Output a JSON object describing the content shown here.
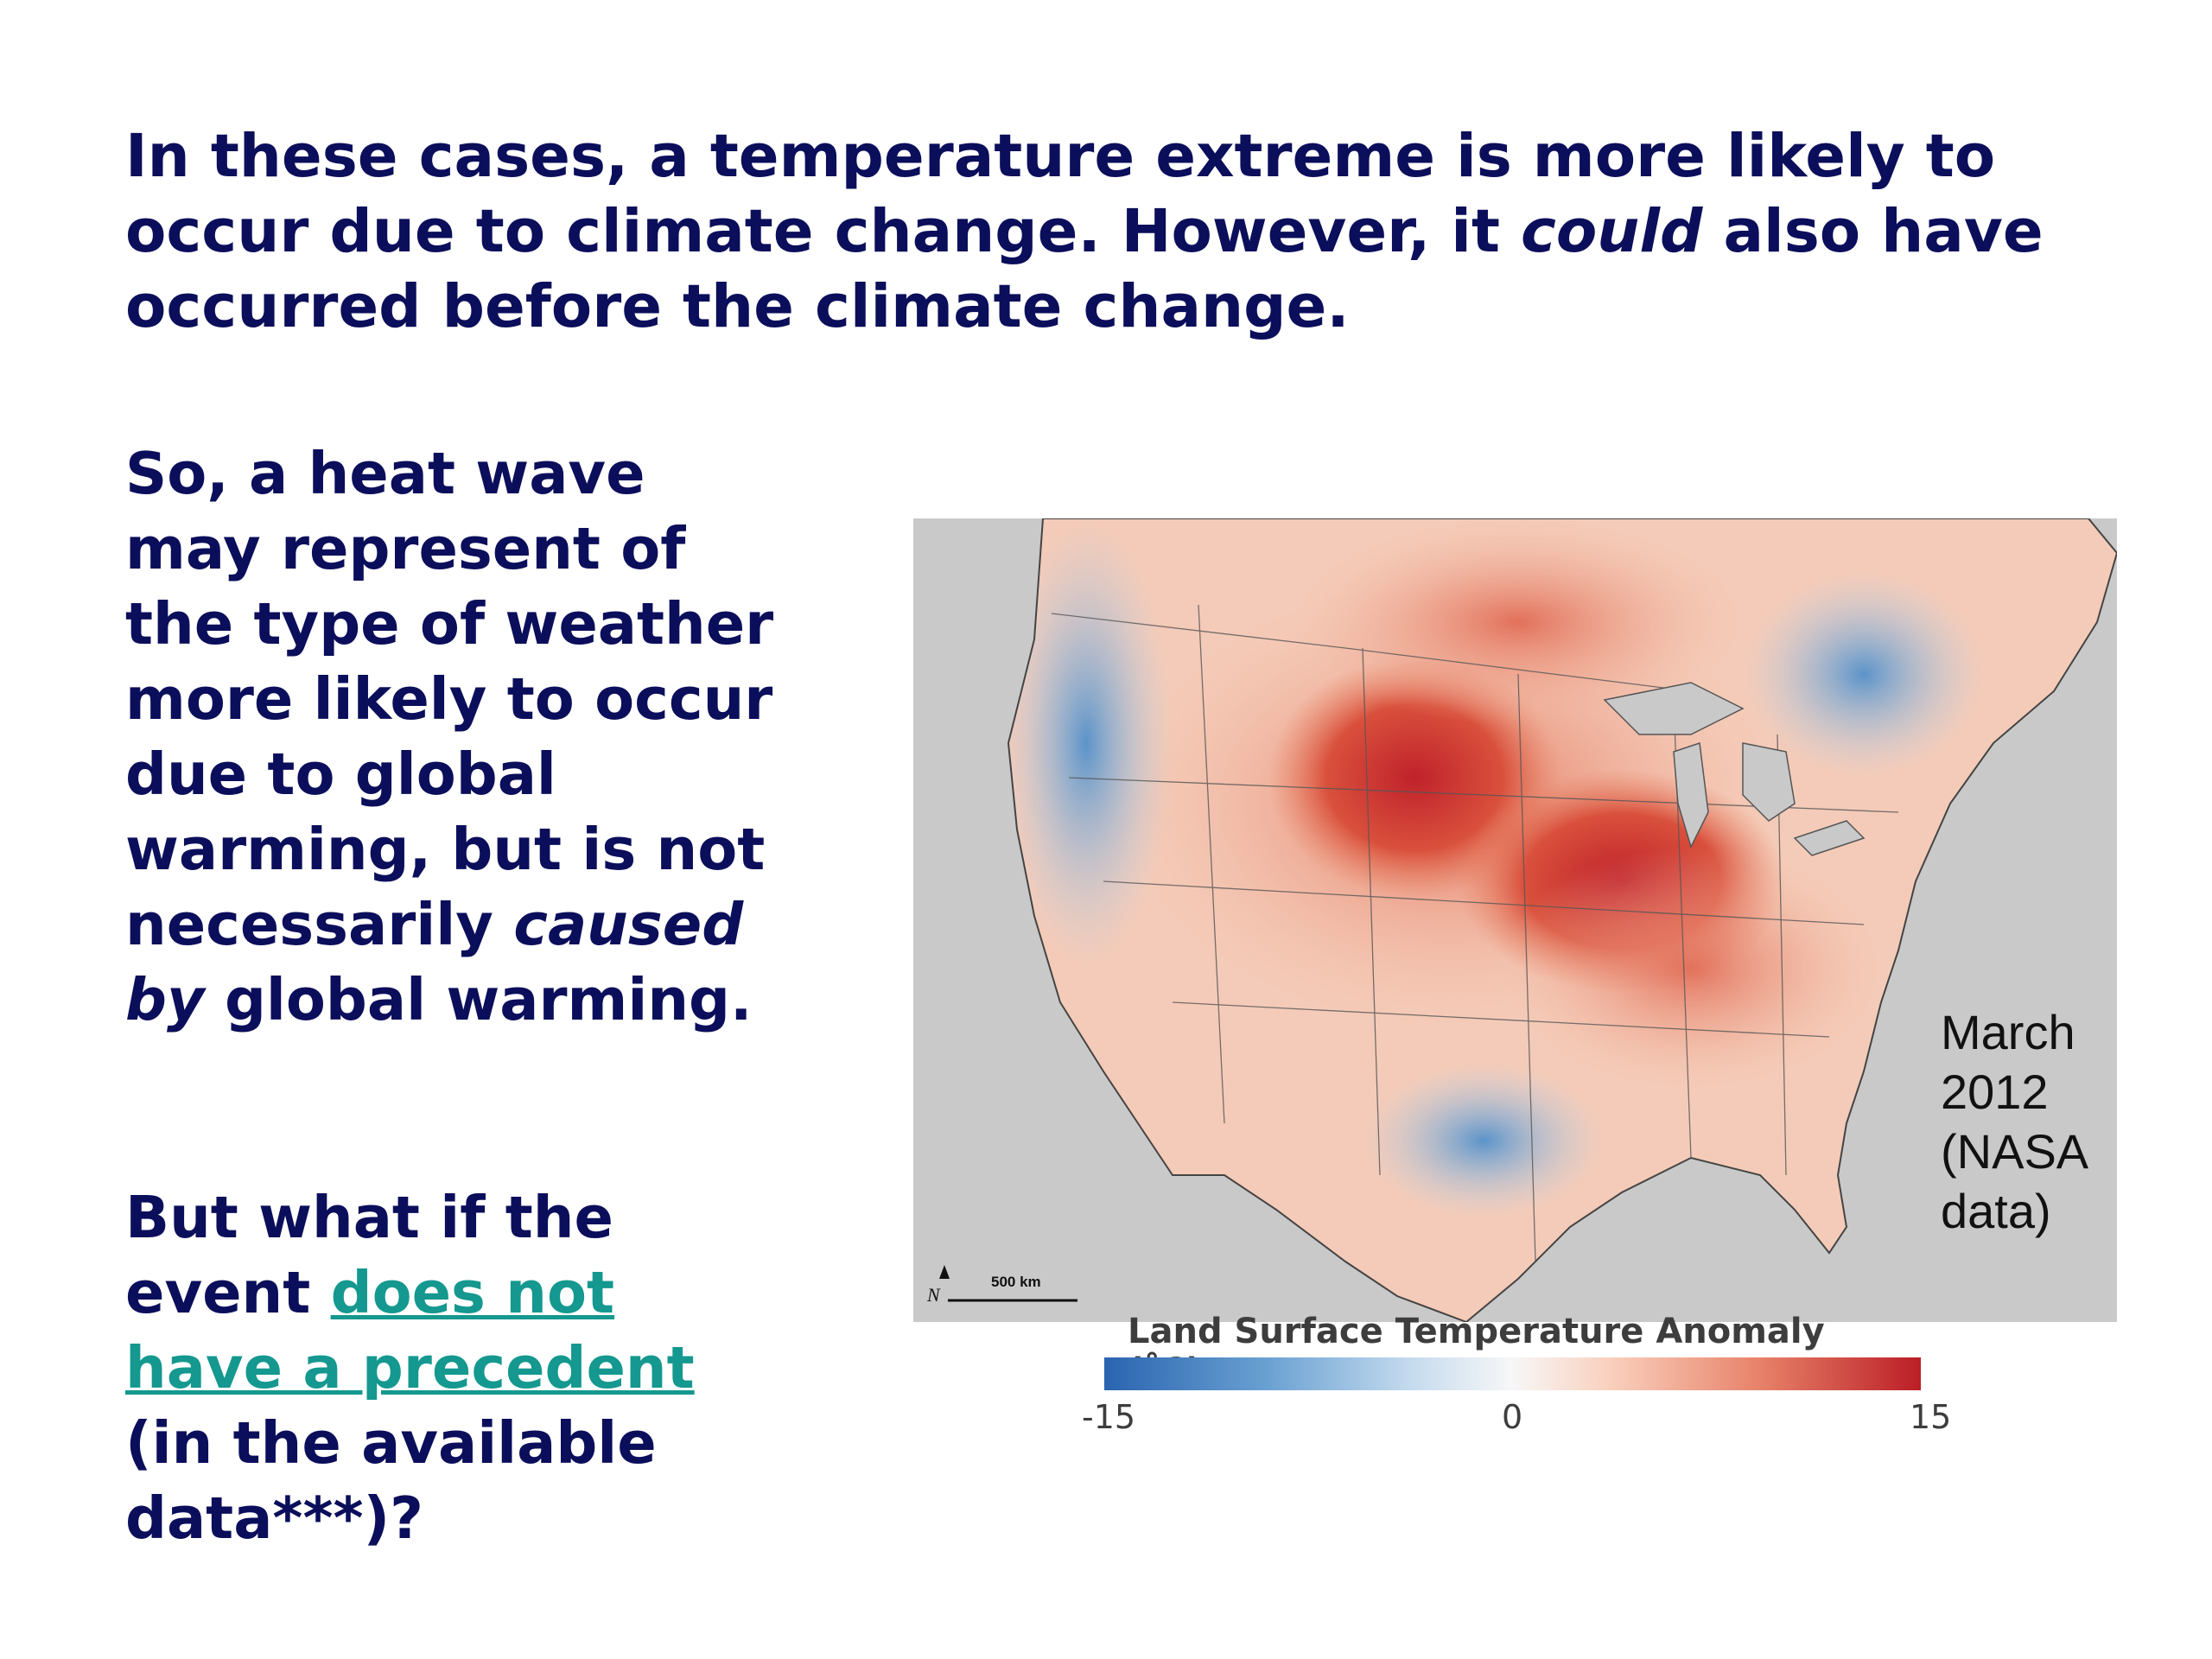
{
  "title": {
    "part1": "In these cases, a temperature extreme is more likely to occur due to climate change. However, it ",
    "emphasis": "could",
    "part2": " also have occurred before the climate change."
  },
  "body1": {
    "part1": "So, a heat wave may represent of the type of weather more likely to occur due to global warming, but is not necessarily ",
    "emphasis": "caused by",
    "part2": " global warming."
  },
  "body2": {
    "part1": "But what if the event ",
    "link": "does not have a precedent",
    "part2": " (in the available data***)?"
  },
  "map": {
    "note": "March 2012 (NASA data)",
    "scale": "500 km",
    "north": "N",
    "legend_title": "Land Surface Temperature Anomaly (˚C)",
    "ticks": [
      "-15",
      "0",
      "15"
    ],
    "colors": {
      "cold": "#2a64b0",
      "neutral": "#f7f7f7",
      "hot": "#bb1e26",
      "no_data": "#c9c9c9"
    }
  }
}
